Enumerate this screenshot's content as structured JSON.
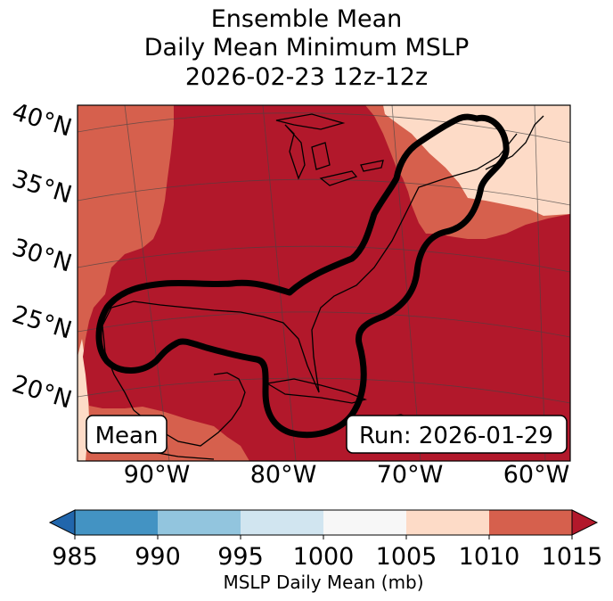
{
  "title": {
    "line1": "Ensemble Mean",
    "line2": "Daily Mean Minimum MSLP",
    "line3": "2026-02-23 12z-12z"
  },
  "map": {
    "lat_labels": [
      "40°N",
      "35°N",
      "30°N",
      "25°N",
      "20°N"
    ],
    "lon_labels": [
      "90°W",
      "80°W",
      "70°W",
      "60°W"
    ],
    "left_box_label": "Mean",
    "right_box_label": "Run: 2026-01-29",
    "colors": {
      "deep_red": "#b2182b",
      "mid_red": "#d6604d",
      "light_peach": "#fddbc7",
      "contour": "#000000",
      "coast": "#000000"
    }
  },
  "colorbar": {
    "label": "MSLP Daily Mean (mb)",
    "ticks": [
      "985",
      "990",
      "995",
      "1000",
      "1005",
      "1010",
      "1015"
    ],
    "colors": [
      "#4393c3",
      "#92c5de",
      "#d1e5f0",
      "#f7f7f7",
      "#fddbc7",
      "#d6604d"
    ],
    "under_color": "#2166ac",
    "over_color": "#b2182b"
  }
}
